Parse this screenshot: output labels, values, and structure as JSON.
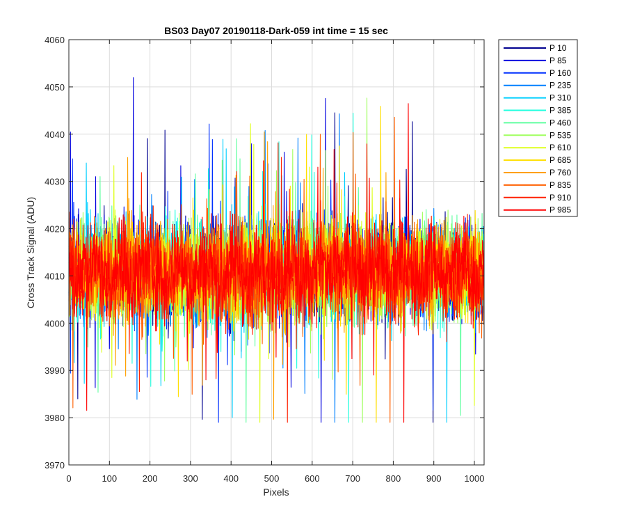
{
  "chart_data": {
    "type": "line",
    "title": "BS03 Day07 20190118-Dark-059 int time = 15 sec",
    "xlabel": "Pixels",
    "ylabel": "Cross Track Signal (ADU)",
    "xlim": [
      0,
      1024
    ],
    "ylim": [
      3970,
      4060
    ],
    "xticks": [
      0,
      100,
      200,
      300,
      400,
      500,
      600,
      700,
      800,
      900,
      1000
    ],
    "yticks": [
      3970,
      3980,
      3990,
      4000,
      4010,
      4020,
      4030,
      4040,
      4050,
      4060
    ],
    "grid": true,
    "legend_position": "outside-top-right",
    "x_points": 1024,
    "series": [
      {
        "name": "P 10",
        "color": "#00008f",
        "mean": 4011,
        "amplitude": 6,
        "noise": 7
      },
      {
        "name": "P 85",
        "color": "#0000df",
        "mean": 4011,
        "amplitude": 6,
        "noise": 7
      },
      {
        "name": "P 160",
        "color": "#0030ff",
        "mean": 4011,
        "amplitude": 6,
        "noise": 7
      },
      {
        "name": "P 235",
        "color": "#0080ff",
        "mean": 4011,
        "amplitude": 6,
        "noise": 7
      },
      {
        "name": "P 310",
        "color": "#00cfff",
        "mean": 4011,
        "amplitude": 6,
        "noise": 7
      },
      {
        "name": "P 385",
        "color": "#20ffdf",
        "mean": 4011,
        "amplitude": 6,
        "noise": 7
      },
      {
        "name": "P 460",
        "color": "#60ffa0",
        "mean": 4011,
        "amplitude": 6,
        "noise": 7
      },
      {
        "name": "P 535",
        "color": "#a0ff60",
        "mean": 4011,
        "amplitude": 6,
        "noise": 7
      },
      {
        "name": "P 610",
        "color": "#dfff20",
        "mean": 4011,
        "amplitude": 6,
        "noise": 7
      },
      {
        "name": "P 685",
        "color": "#ffdf00",
        "mean": 4011,
        "amplitude": 6,
        "noise": 7
      },
      {
        "name": "P 760",
        "color": "#ffa000",
        "mean": 4011,
        "amplitude": 6,
        "noise": 7
      },
      {
        "name": "P 835",
        "color": "#ff6000",
        "mean": 4011,
        "amplitude": 6,
        "noise": 7
      },
      {
        "name": "P 910",
        "color": "#ff2000",
        "mean": 4011,
        "amplitude": 6,
        "noise": 7
      },
      {
        "name": "P 985",
        "color": "#ff0000",
        "mean": 4011,
        "amplitude": 6,
        "noise": 7
      }
    ]
  }
}
